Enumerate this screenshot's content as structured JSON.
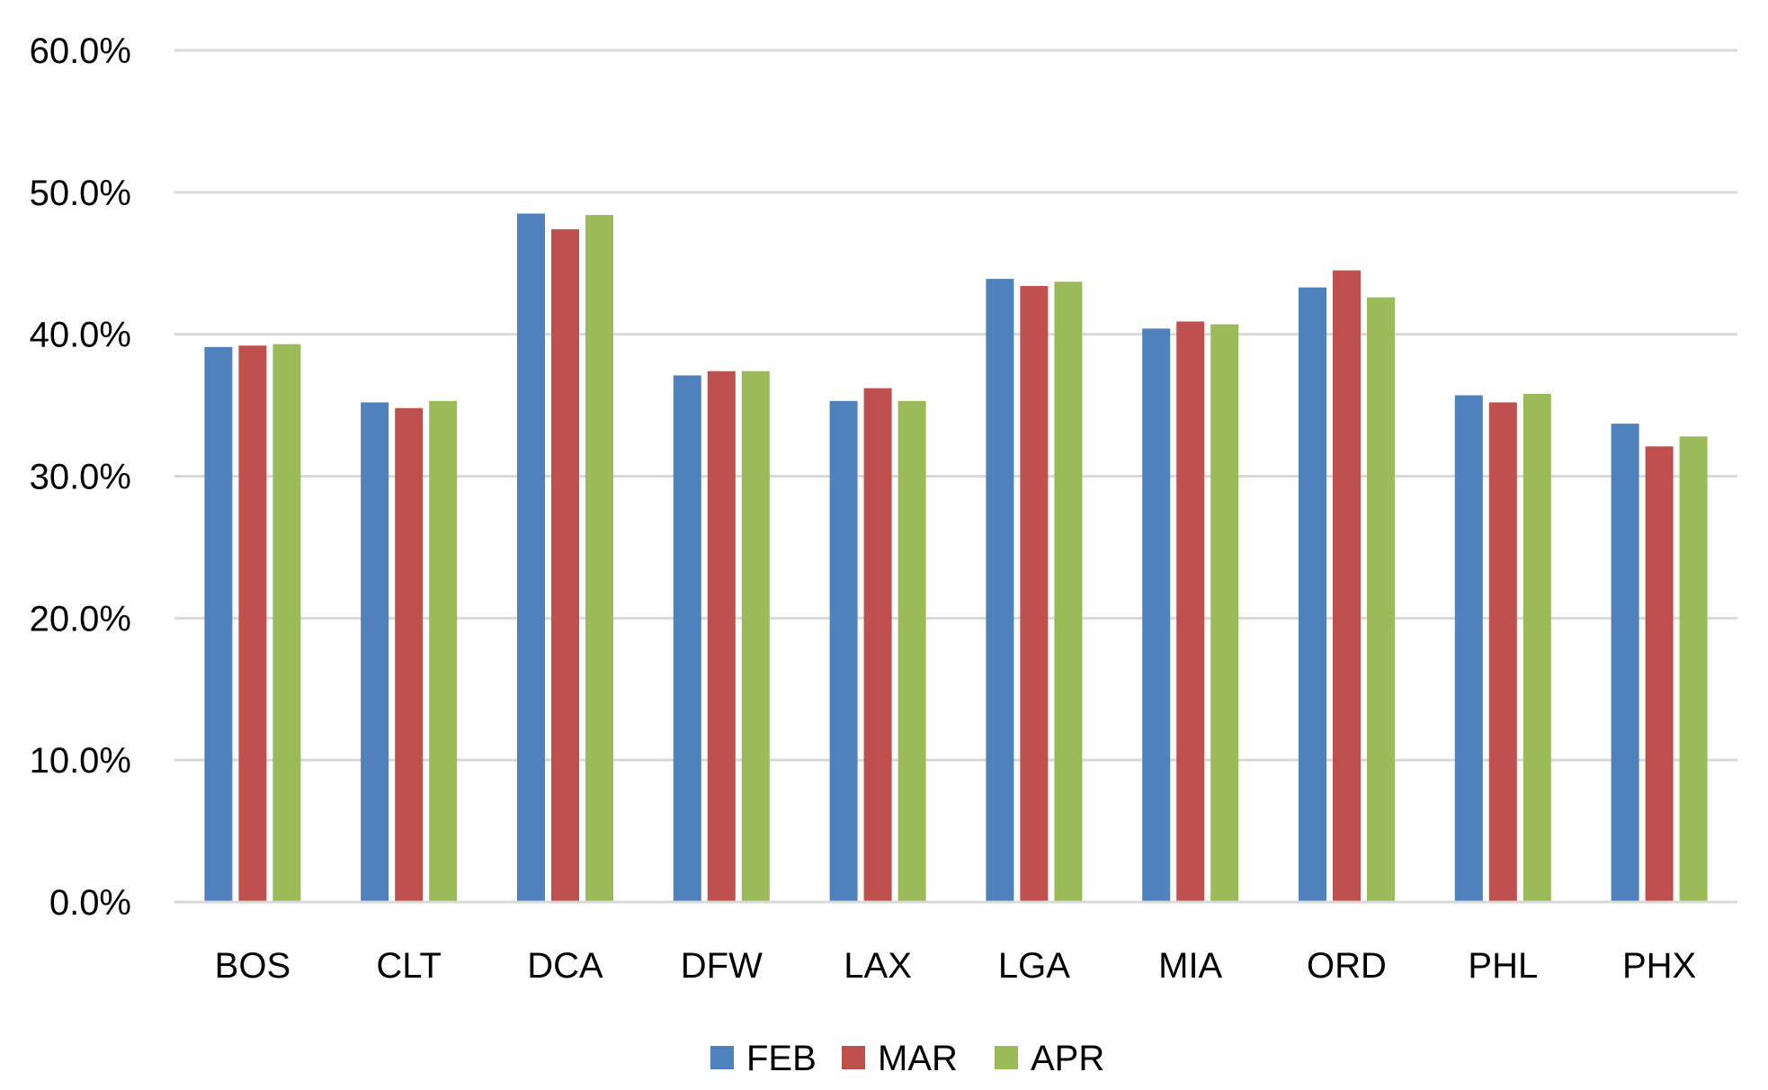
{
  "chart_data": {
    "type": "bar",
    "title": "",
    "xlabel": "",
    "ylabel": "",
    "ylim": [
      0,
      60
    ],
    "y_tick_format": "percent_1dp",
    "y_ticks": [
      "0.0%",
      "10.0%",
      "20.0%",
      "30.0%",
      "40.0%",
      "50.0%",
      "60.0%"
    ],
    "grid": true,
    "legend_position": "bottom",
    "categories": [
      "BOS",
      "CLT",
      "DCA",
      "DFW",
      "LAX",
      "LGA",
      "MIA",
      "ORD",
      "PHL",
      "PHX"
    ],
    "series": [
      {
        "name": "FEB",
        "color": "#4F81BD",
        "values": [
          39.1,
          35.2,
          48.5,
          37.1,
          35.3,
          43.9,
          40.4,
          43.3,
          35.7,
          33.7
        ]
      },
      {
        "name": "MAR",
        "color": "#C0504D",
        "values": [
          39.2,
          34.8,
          47.4,
          37.4,
          36.2,
          43.4,
          40.9,
          44.5,
          35.2,
          32.1
        ]
      },
      {
        "name": "APR",
        "color": "#9BBB59",
        "values": [
          39.3,
          35.3,
          48.4,
          37.4,
          35.3,
          43.7,
          40.7,
          42.6,
          35.8,
          32.8
        ]
      }
    ]
  }
}
